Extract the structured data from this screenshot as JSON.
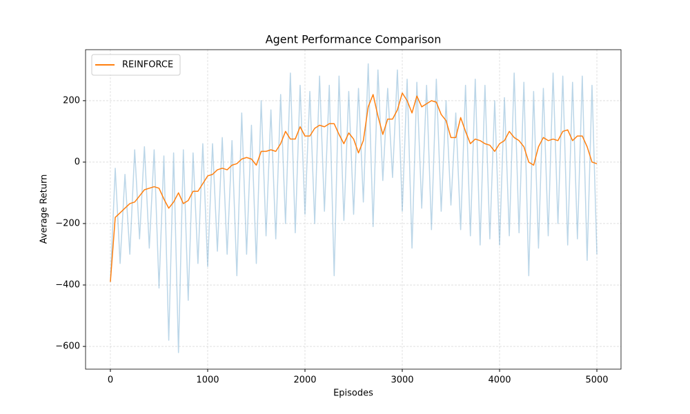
{
  "chart_data": {
    "type": "line",
    "title": "Agent Performance Comparison",
    "x_label": "Episodes",
    "y_label": "Average Return",
    "x": [
      0,
      50,
      100,
      150,
      200,
      250,
      300,
      350,
      400,
      450,
      500,
      550,
      600,
      650,
      700,
      750,
      800,
      850,
      900,
      950,
      1000,
      1050,
      1100,
      1150,
      1200,
      1250,
      1300,
      1350,
      1400,
      1450,
      1500,
      1550,
      1600,
      1650,
      1700,
      1750,
      1800,
      1850,
      1900,
      1950,
      2000,
      2050,
      2100,
      2150,
      2200,
      2250,
      2300,
      2350,
      2400,
      2450,
      2500,
      2550,
      2600,
      2650,
      2700,
      2750,
      2800,
      2850,
      2900,
      2950,
      3000,
      3050,
      3100,
      3150,
      3200,
      3250,
      3300,
      3350,
      3400,
      3450,
      3500,
      3550,
      3600,
      3650,
      3700,
      3750,
      3800,
      3850,
      3900,
      3950,
      4000,
      4050,
      4100,
      4150,
      4200,
      4250,
      4300,
      4350,
      4400,
      4450,
      4500,
      4550,
      4600,
      4650,
      4700,
      4750,
      4800,
      4850,
      4900,
      4950,
      5000
    ],
    "series": [
      {
        "color": "#1f77b4",
        "alpha": 0.3,
        "values": [
          -390,
          -20,
          -330,
          -40,
          -300,
          40,
          -250,
          50,
          -280,
          40,
          -410,
          20,
          -580,
          30,
          -620,
          40,
          -450,
          30,
          -330,
          60,
          -340,
          60,
          -290,
          80,
          -300,
          70,
          -370,
          160,
          -300,
          120,
          -330,
          200,
          -240,
          170,
          -250,
          220,
          -200,
          290,
          -230,
          250,
          -170,
          230,
          -200,
          280,
          -160,
          250,
          -370,
          280,
          -190,
          230,
          -170,
          240,
          -130,
          320,
          -210,
          300,
          -60,
          240,
          -50,
          300,
          -160,
          270,
          -280,
          260,
          -150,
          250,
          -220,
          270,
          -160,
          200,
          -140,
          160,
          -220,
          250,
          -240,
          270,
          -270,
          250,
          -250,
          200,
          -270,
          210,
          -240,
          290,
          -230,
          260,
          -370,
          230,
          -280,
          240,
          -240,
          290,
          -200,
          280,
          -270,
          260,
          -250,
          280,
          -320,
          250,
          -300
        ]
      },
      {
        "name": "REINFORCE",
        "color": "#ff7f0e",
        "alpha": 1,
        "values": [
          -390,
          -180,
          -165,
          -150,
          -135,
          -130,
          -110,
          -90,
          -85,
          -80,
          -85,
          -120,
          -150,
          -130,
          -100,
          -135,
          -125,
          -95,
          -95,
          -70,
          -45,
          -40,
          -25,
          -20,
          -25,
          -10,
          -5,
          10,
          15,
          10,
          -10,
          35,
          35,
          40,
          35,
          60,
          100,
          75,
          75,
          115,
          85,
          85,
          110,
          120,
          115,
          125,
          125,
          90,
          60,
          95,
          75,
          30,
          70,
          180,
          220,
          150,
          90,
          140,
          140,
          170,
          225,
          200,
          160,
          215,
          180,
          190,
          200,
          195,
          155,
          135,
          80,
          80,
          145,
          100,
          60,
          75,
          70,
          60,
          55,
          35,
          60,
          70,
          100,
          80,
          70,
          50,
          0,
          -10,
          50,
          80,
          70,
          75,
          70,
          100,
          105,
          70,
          85,
          85,
          50,
          0,
          -5
        ]
      }
    ],
    "xlim": [
      -255,
      5248
    ],
    "ylim": [
      -674,
      366
    ],
    "xticks": [
      0,
      1000,
      2000,
      3000,
      4000,
      5000
    ],
    "yticks": [
      {
        "value": -600,
        "label": "−600"
      },
      {
        "value": -400,
        "label": "−400"
      },
      {
        "value": -200,
        "label": "−200"
      },
      0,
      200
    ],
    "grid": true,
    "legend": "upper-left"
  }
}
